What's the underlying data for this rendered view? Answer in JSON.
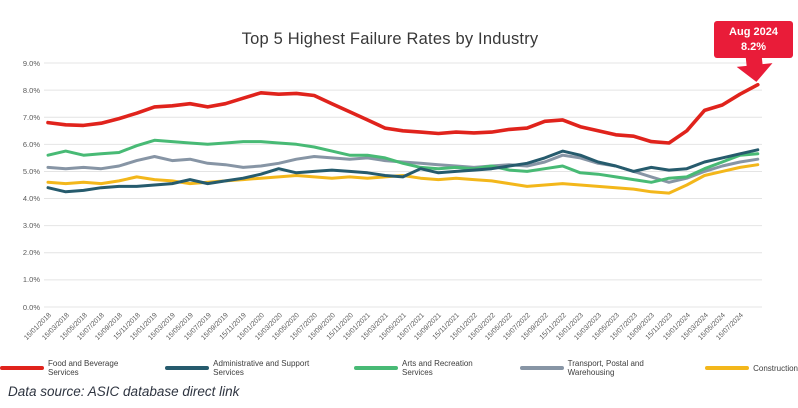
{
  "title": "Top 5 Highest Failure Rates by Industry",
  "source_note": "Data source: ASIC database direct link",
  "annotation_callout": {
    "line1": "Aug 2024",
    "line2": "8.2%",
    "bg_color": "#e91c39",
    "text_color": "#ffffff",
    "points_to": "last point of Food and Beverage Services line"
  },
  "colors": {
    "gridline": "#e4e4e4",
    "axis_text": "#595959",
    "title_text": "#383838"
  },
  "chart_data": {
    "type": "line",
    "title": "Top 5 Highest Failure Rates by Industry",
    "xlabel": "",
    "ylabel": "",
    "ylim": [
      0,
      9
    ],
    "grid": true,
    "legend_position": "bottom",
    "y_tick_labels": [
      "0.0%",
      "1.0%",
      "2.0%",
      "3.0%",
      "4.0%",
      "5.0%",
      "6.0%",
      "7.0%",
      "8.0%",
      "9.0%"
    ],
    "x_tick_labels": [
      "15/01/2018",
      "15/03/2018",
      "15/05/2018",
      "15/07/2018",
      "15/09/2018",
      "15/11/2018",
      "15/01/2019",
      "15/03/2019",
      "15/05/2019",
      "15/07/2019",
      "15/09/2019",
      "15/11/2019",
      "15/01/2020",
      "15/03/2020",
      "15/05/2020",
      "15/07/2020",
      "15/09/2020",
      "15/11/2020",
      "15/01/2021",
      "15/03/2021",
      "15/05/2021",
      "15/07/2021",
      "15/09/2021",
      "15/11/2021",
      "15/01/2022",
      "15/03/2022",
      "15/05/2022",
      "15/07/2022",
      "15/09/2022",
      "15/11/2022",
      "15/01/2023",
      "15/03/2023",
      "15/05/2023",
      "15/07/2023",
      "15/09/2023",
      "15/11/2023",
      "15/01/2024",
      "15/03/2024",
      "15/05/2024",
      "15/07/2024"
    ],
    "note": "each series has one extra unlabeled final point (Aug 2024) beyond the last tick; the red series ends at 8.2% per the callout",
    "series": [
      {
        "name": "Food and Beverage Services",
        "color": "#e0231c",
        "values": [
          6.8,
          6.72,
          6.7,
          6.78,
          6.95,
          7.15,
          7.38,
          7.42,
          7.5,
          7.38,
          7.5,
          7.7,
          7.9,
          7.85,
          7.88,
          7.8,
          7.5,
          7.2,
          6.9,
          6.6,
          6.5,
          6.45,
          6.4,
          6.45,
          6.42,
          6.45,
          6.55,
          6.6,
          6.85,
          6.9,
          6.65,
          6.5,
          6.35,
          6.3,
          6.1,
          6.05,
          6.5,
          7.25,
          7.45,
          7.85,
          8.2
        ]
      },
      {
        "name": "Administrative and Support Services",
        "color": "#265b6d",
        "values": [
          4.4,
          4.25,
          4.3,
          4.4,
          4.45,
          4.45,
          4.5,
          4.55,
          4.7,
          4.55,
          4.65,
          4.75,
          4.9,
          5.1,
          4.95,
          5.0,
          5.05,
          5.0,
          4.95,
          4.85,
          4.8,
          5.1,
          4.95,
          5.0,
          5.05,
          5.1,
          5.2,
          5.3,
          5.5,
          5.75,
          5.6,
          5.35,
          5.2,
          5.0,
          5.15,
          5.05,
          5.1,
          5.35,
          5.5,
          5.65,
          5.8
        ]
      },
      {
        "name": "Arts and Recreation Services",
        "color": "#48ba75",
        "values": [
          5.6,
          5.75,
          5.6,
          5.65,
          5.7,
          5.95,
          6.15,
          6.1,
          6.05,
          6.0,
          6.05,
          6.1,
          6.1,
          6.05,
          6.0,
          5.9,
          5.75,
          5.6,
          5.6,
          5.5,
          5.3,
          5.15,
          5.1,
          5.15,
          5.1,
          5.2,
          5.05,
          5.0,
          5.1,
          5.2,
          4.95,
          4.9,
          4.8,
          4.7,
          4.6,
          4.75,
          4.8,
          5.1,
          5.35,
          5.6,
          5.65
        ]
      },
      {
        "name": "Transport, Postal and Warehousing",
        "color": "#8795a5",
        "values": [
          5.15,
          5.1,
          5.15,
          5.1,
          5.2,
          5.4,
          5.55,
          5.4,
          5.45,
          5.3,
          5.25,
          5.15,
          5.2,
          5.3,
          5.45,
          5.55,
          5.5,
          5.45,
          5.5,
          5.4,
          5.35,
          5.3,
          5.25,
          5.2,
          5.15,
          5.2,
          5.25,
          5.2,
          5.35,
          5.6,
          5.5,
          5.3,
          5.2,
          5.0,
          4.8,
          4.6,
          4.75,
          5.0,
          5.2,
          5.35,
          5.45
        ]
      },
      {
        "name": "Construction",
        "color": "#f3b71b",
        "values": [
          4.6,
          4.55,
          4.6,
          4.55,
          4.65,
          4.8,
          4.7,
          4.65,
          4.55,
          4.6,
          4.65,
          4.7,
          4.75,
          4.8,
          4.85,
          4.8,
          4.75,
          4.8,
          4.75,
          4.8,
          4.85,
          4.75,
          4.7,
          4.75,
          4.7,
          4.65,
          4.55,
          4.45,
          4.5,
          4.55,
          4.5,
          4.45,
          4.4,
          4.35,
          4.25,
          4.2,
          4.5,
          4.85,
          5.0,
          5.15,
          5.25
        ]
      }
    ]
  }
}
